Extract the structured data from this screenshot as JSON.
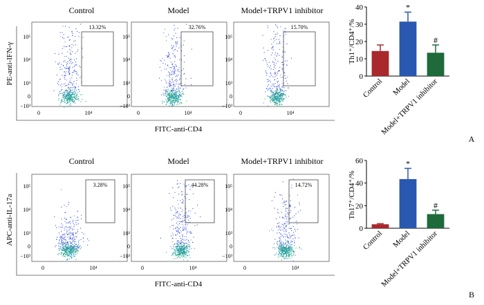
{
  "chart_data": [
    {
      "type": "scatter",
      "panel": "A",
      "title_labels": [
        "Control",
        "Model",
        "Model+TRPV1 inhibitor"
      ],
      "gate_percents": [
        "13.32%",
        "32.76%",
        "15.70%"
      ],
      "ylabel": "PE-anti-IFN-γ",
      "xlabel": "FITC-anti-CD4",
      "y_ticks": [
        "10⁵",
        "10⁴",
        "10³",
        "0",
        "−10³"
      ],
      "x_ticks": [
        "0",
        "10⁴"
      ]
    },
    {
      "type": "bar",
      "panel": "A",
      "categories": [
        "Control",
        "Model",
        "Model+TRPV1 inhibitor"
      ],
      "values": [
        14.5,
        31.5,
        13.5
      ],
      "errors": [
        3.5,
        5.5,
        4.5
      ],
      "colors": [
        "#a8282c",
        "#2a58b0",
        "#1e6a3a"
      ],
      "annotations": [
        "",
        "*",
        "#"
      ],
      "ylabel": "Th1⁺/CD4⁺/%",
      "ylim": [
        0,
        40
      ],
      "y_ticks": [
        0,
        10,
        20,
        30,
        40
      ]
    },
    {
      "type": "scatter",
      "panel": "B",
      "title_labels": [
        "Control",
        "Model",
        "Model+TRPV1 inhibitor"
      ],
      "gate_percents": [
        "3.28%",
        "44.28%",
        "14.72%"
      ],
      "ylabel": "APC-anti-IL-17a",
      "xlabel": "FITC-anti-CD4",
      "y_ticks": [
        "10⁵",
        "10⁴",
        "10³",
        "0",
        "−10³"
      ],
      "x_ticks": [
        "0",
        "10⁴"
      ]
    },
    {
      "type": "bar",
      "panel": "B",
      "categories": [
        "Control",
        "Model",
        "Model+TRPV1 inhibitor"
      ],
      "values": [
        3.5,
        43.5,
        12.5
      ],
      "errors": [
        0.5,
        9.5,
        3.5
      ],
      "colors": [
        "#a8282c",
        "#2a58b0",
        "#1e6a3a"
      ],
      "annotations": [
        "",
        "*",
        "#"
      ],
      "ylabel": "Th17⁺/CD4⁺/%",
      "ylim": [
        0,
        60
      ],
      "y_ticks": [
        0,
        20,
        40,
        60
      ]
    }
  ],
  "panel_labels": {
    "a": "A",
    "b": "B"
  }
}
